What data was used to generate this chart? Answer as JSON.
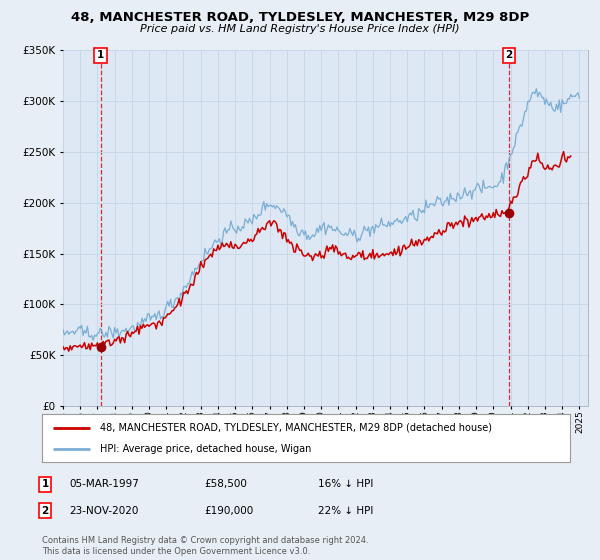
{
  "title": "48, MANCHESTER ROAD, TYLDESLEY, MANCHESTER, M29 8DP",
  "subtitle": "Price paid vs. HM Land Registry's House Price Index (HPI)",
  "background_color": "#e8eef5",
  "plot_bg_color": "#dde8f4",
  "sale1_date_num": 1997.18,
  "sale1_price": 58500,
  "sale2_date_num": 2020.9,
  "sale2_price": 190000,
  "legend_line1": "48, MANCHESTER ROAD, TYLDESLEY, MANCHESTER, M29 8DP (detached house)",
  "legend_line2": "HPI: Average price, detached house, Wigan",
  "table_row1": [
    "1",
    "05-MAR-1997",
    "£58,500",
    "16% ↓ HPI"
  ],
  "table_row2": [
    "2",
    "23-NOV-2020",
    "£190,000",
    "22% ↓ HPI"
  ],
  "footnote": "Contains HM Land Registry data © Crown copyright and database right 2024.\nThis data is licensed under the Open Government Licence v3.0.",
  "xmin": 1995.0,
  "xmax": 2025.5,
  "ymin": 0,
  "ymax": 350000,
  "red_line_color": "#cc0000",
  "blue_line_color": "#7aadd4",
  "marker_color": "#990000",
  "vline_color": "#cc0000",
  "grid_color": "#c8d8e8"
}
